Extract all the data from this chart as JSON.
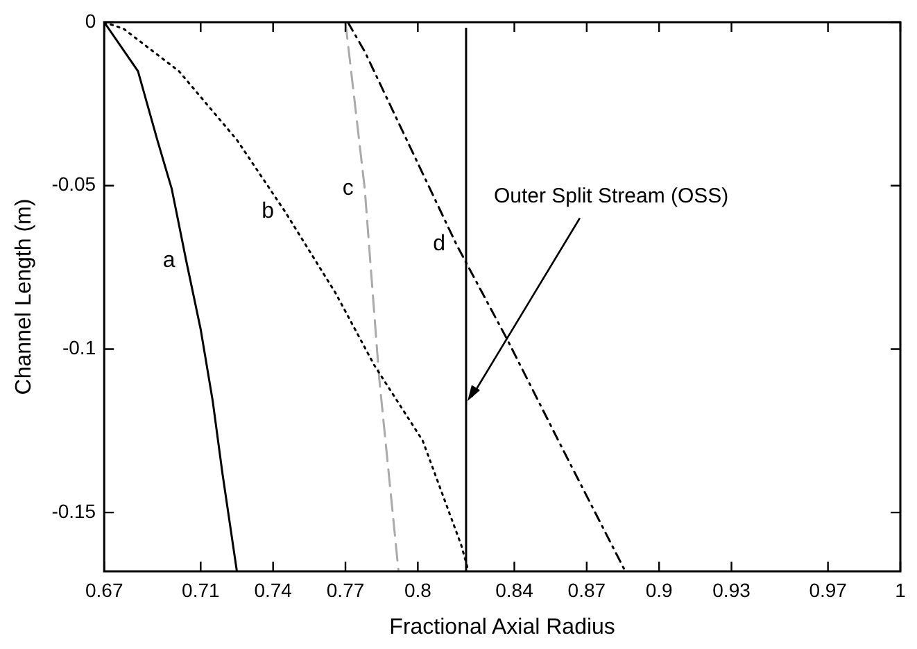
{
  "chart_data": {
    "type": "line",
    "xlabel": "Fractional Axial Radius",
    "ylabel": "Channel Length (m)",
    "xlim": [
      0.67,
      1.0
    ],
    "ylim": [
      -0.168,
      0
    ],
    "xticks": [
      0.67,
      0.71,
      0.74,
      0.77,
      0.8,
      0.84,
      0.87,
      0.9,
      0.93,
      0.97,
      1
    ],
    "yticks": [
      0,
      -0.05,
      -0.1,
      -0.15
    ],
    "grid": false,
    "legend": false,
    "marker": "none",
    "series": [
      {
        "name": "a",
        "color": "#000000",
        "line_style": "solid",
        "x": [
          0.67,
          0.684,
          0.692,
          0.698,
          0.704,
          0.71,
          0.715,
          0.719,
          0.725
        ],
        "values": [
          0,
          -0.015,
          -0.036,
          -0.051,
          -0.073,
          -0.094,
          -0.116,
          -0.138,
          -0.168
        ]
      },
      {
        "name": "b",
        "color": "#000000",
        "line_style": "dotted",
        "x": [
          0.67,
          0.678,
          0.701,
          0.725,
          0.745,
          0.766,
          0.782,
          0.802,
          0.818,
          0.821
        ],
        "values": [
          0,
          -0.002,
          -0.015,
          -0.036,
          -0.058,
          -0.083,
          -0.105,
          -0.128,
          -0.16,
          -0.168
        ]
      },
      {
        "name": "c",
        "color": "#aaaaaa",
        "line_style": "dashed",
        "x": [
          0.77,
          0.778,
          0.784,
          0.792
        ],
        "values": [
          0,
          -0.051,
          -0.109,
          -0.168
        ]
      },
      {
        "name": "d",
        "color": "#000000",
        "line_style": "dashdot",
        "x": [
          0.771,
          0.778,
          0.816,
          0.837,
          0.861,
          0.886
        ],
        "values": [
          0,
          -0.009,
          -0.068,
          -0.097,
          -0.132,
          -0.168
        ]
      }
    ],
    "ref_lines": [
      {
        "axis": "x",
        "value": 0.82,
        "label": "Outer Split Stream (OSS)",
        "color": "#000000"
      }
    ]
  }
}
